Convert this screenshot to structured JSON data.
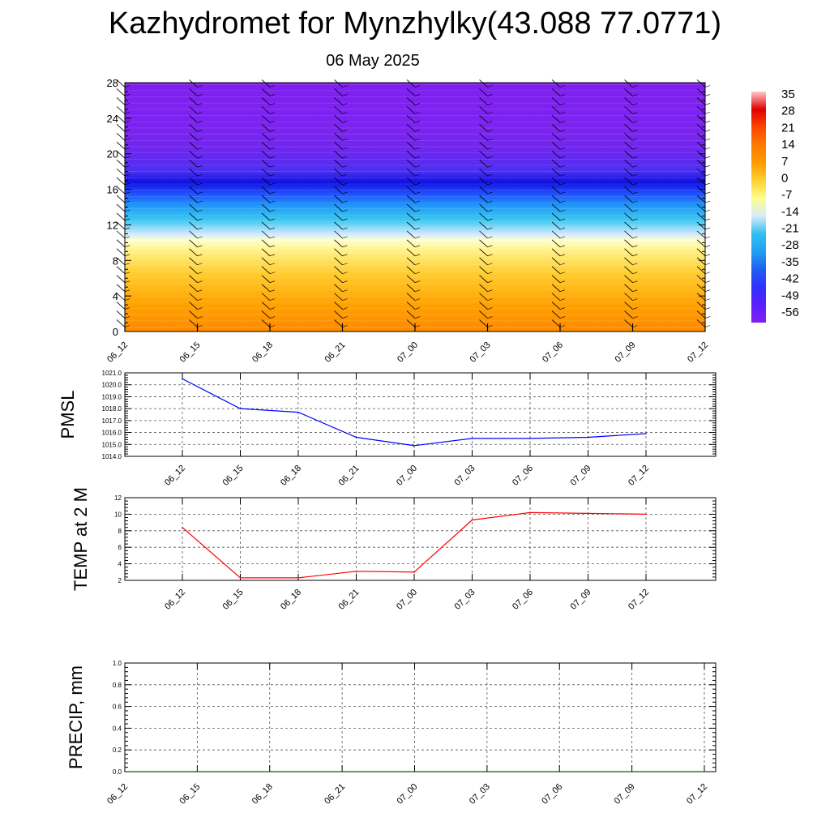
{
  "title": "Kazhydromet for Mynzhylky(43.088 77.0771)",
  "subtitle": "06 May 2025",
  "time_labels": [
    "06_12",
    "06_15",
    "06_18",
    "06_21",
    "07_00",
    "07_03",
    "07_06",
    "07_09",
    "07_12"
  ],
  "chart_data": [
    {
      "type": "heatmap",
      "name": "temperature_height_section",
      "x": [
        "06_12",
        "06_15",
        "06_18",
        "06_21",
        "07_00",
        "07_03",
        "07_06",
        "07_09",
        "07_12"
      ],
      "ylim": [
        0,
        28
      ],
      "yticks": [
        0,
        4,
        8,
        12,
        16,
        20,
        24,
        28
      ],
      "colorbar_labels": [
        "35",
        "28",
        "21",
        "14",
        "7",
        "0",
        "-7",
        "-14",
        "-21",
        "-28",
        "-35",
        "-42",
        "-49",
        "-56"
      ],
      "color_stops": [
        "#ffc8c8",
        "#e00000",
        "#ff4400",
        "#ff7a00",
        "#ff9a00",
        "#ffd030",
        "#ffff90",
        "#d8eaf8",
        "#30c0f0",
        "#20a0f0",
        "#2060f0",
        "#3030ff",
        "#5a20ff",
        "#8020f0"
      ],
      "profile": [
        [
          0,
          "#ff8a00"
        ],
        [
          3,
          "#ffa200"
        ],
        [
          6.5,
          "#ffcc30"
        ],
        [
          9,
          "#fff080"
        ],
        [
          10.3,
          "#ffffd0"
        ],
        [
          11,
          "#cfe8ff"
        ],
        [
          12.5,
          "#40c8f0"
        ],
        [
          14,
          "#20a0f8"
        ],
        [
          15.5,
          "#2050ff"
        ],
        [
          16.8,
          "#1010e0"
        ],
        [
          18,
          "#4a30f0"
        ],
        [
          20,
          "#6a28f0"
        ],
        [
          22,
          "#7a24f0"
        ],
        [
          28,
          "#8020f0"
        ]
      ],
      "wind_barbs": true
    },
    {
      "type": "line",
      "name": "pmsl",
      "ylabel": "PMSL",
      "x": [
        "06_12",
        "06_15",
        "06_18",
        "06_21",
        "07_00",
        "07_03",
        "07_06",
        "07_09",
        "07_12"
      ],
      "values": [
        1020.5,
        1018.0,
        1017.7,
        1015.6,
        1014.9,
        1015.5,
        1015.5,
        1015.6,
        1015.9
      ],
      "ylim": [
        1014.0,
        1021.0
      ],
      "yticks": [
        "1014.0",
        "1015.0",
        "1016.0",
        "1017.0",
        "1018.0",
        "1019.0",
        "1020.0",
        "1021.0"
      ],
      "color": "#0000ff",
      "grid": true
    },
    {
      "type": "line",
      "name": "temp_2m",
      "ylabel": "TEMP at 2 M",
      "x": [
        "06_12",
        "06_15",
        "06_18",
        "06_21",
        "07_00",
        "07_03",
        "07_06",
        "07_09",
        "07_12"
      ],
      "values": [
        8.4,
        2.3,
        2.3,
        3.1,
        3.0,
        9.3,
        10.2,
        10.1,
        10.0
      ],
      "ylim": [
        2,
        12
      ],
      "yticks": [
        "2",
        "4",
        "6",
        "8",
        "10",
        "12"
      ],
      "color": "#ff0000",
      "grid": true
    },
    {
      "type": "line",
      "name": "precip",
      "ylabel": "PRECIP, mm",
      "x": [
        "06_12",
        "06_15",
        "06_18",
        "06_21",
        "07_00",
        "07_03",
        "07_06",
        "07_09",
        "07_12"
      ],
      "values": [
        0,
        0,
        0,
        0,
        0,
        0,
        0,
        0,
        0
      ],
      "ylim": [
        0.0,
        1.0
      ],
      "yticks": [
        "0.0",
        "0.2",
        "0.4",
        "0.6",
        "0.8",
        "1.0"
      ],
      "color": "#006400",
      "grid": true
    }
  ]
}
